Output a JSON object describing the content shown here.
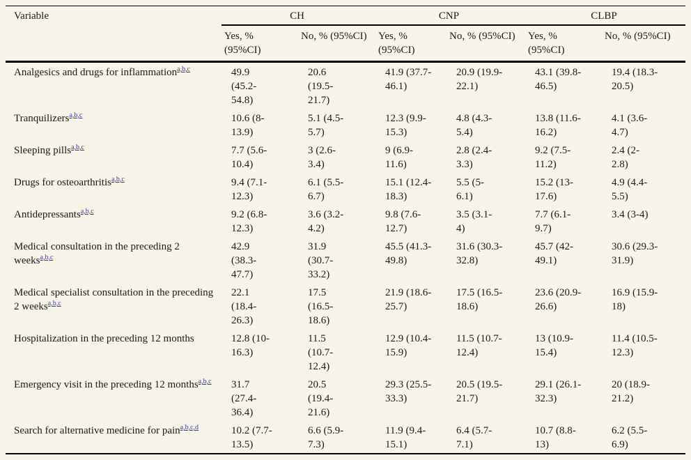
{
  "colors": {
    "bg": "#f7f4ea",
    "ink": "#1c1a17",
    "link": "#3333cc",
    "rule": "#000000"
  },
  "table": {
    "variable_header": "Variable",
    "groups": [
      {
        "label": "CH"
      },
      {
        "label": "CNP"
      },
      {
        "label": "CLBP"
      }
    ],
    "subheaders": [
      "Yes, %\n(95%CI)",
      "No, % (95%CI)",
      "Yes, %\n(95%CI)",
      "No, % (95%CI)",
      "Yes, %\n(95%CI)",
      "No, % (95%CI)"
    ],
    "rows": [
      {
        "variable": "Analgesics and drugs for inflammation",
        "footnotes": "a,b,c",
        "values": [
          "49.9\n(45.2-\n54.8)",
          "20.6\n(19.5-\n21.7)",
          "41.9 (37.7-\n46.1)",
          "20.9 (19.9-\n22.1)",
          "43.1 (39.8-\n46.5)",
          "19.4 (18.3-\n20.5)"
        ]
      },
      {
        "variable": "Tranquilizers",
        "footnotes": "a,b,c",
        "values": [
          "10.6 (8-\n13.9)",
          "5.1 (4.5-\n5.7)",
          "12.3 (9.9-\n15.3)",
          "4.8 (4.3-\n5.4)",
          "13.8 (11.6-\n16.2)",
          "4.1 (3.6-\n4.7)"
        ]
      },
      {
        "variable": "Sleeping pills",
        "footnotes": "a,b,c",
        "values": [
          "7.7 (5.6-\n10.4)",
          "3 (2.6-\n3.4)",
          "9 (6.9-\n11.6)",
          "2.8 (2.4-\n3.3)",
          "9.2 (7.5-\n11.2)",
          "2.4 (2-\n2.8)"
        ]
      },
      {
        "variable": "Drugs for osteoarthritis",
        "footnotes": "a,b,c",
        "values": [
          "9.4 (7.1-\n12.3)",
          "6.1 (5.5-\n6.7)",
          "15.1 (12.4-\n18.3)",
          "5.5 (5-\n6.1)",
          "15.2 (13-\n17.6)",
          "4.9 (4.4-\n5.5)"
        ]
      },
      {
        "variable": "Antidepressants",
        "footnotes": "a,b,c",
        "values": [
          "9.2 (6.8-\n12.3)",
          "3.6 (3.2-\n4.2)",
          "9.8 (7.6-\n12.7)",
          "3.5 (3.1-\n4)",
          "7.7 (6.1-\n9.7)",
          "3.4 (3-4)"
        ]
      },
      {
        "variable": "Medical consultation in the preceding 2 weeks",
        "footnotes": "a,b,c",
        "values": [
          "42.9\n(38.3-\n47.7)",
          "31.9\n(30.7-\n33.2)",
          "45.5 (41.3-\n49.8)",
          "31.6 (30.3-\n32.8)",
          "45.7 (42-\n49.1)",
          "30.6 (29.3-\n31.9)"
        ]
      },
      {
        "variable": "Medical specialist consultation in the preceding 2 weeks",
        "footnotes": "a,b,c",
        "values": [
          "22.1\n(18.4-\n26.3)",
          "17.5\n(16.5-\n18.6)",
          "21.9 (18.6-\n25.7)",
          "17.5 (16.5-\n18.6)",
          "23.6 (20.9-\n26.6)",
          "16.9 (15.9-\n18)"
        ]
      },
      {
        "variable": "Hospitalization in the preceding 12 months",
        "footnotes": "",
        "values": [
          "12.8 (10-\n16.3)",
          "11.5\n(10.7-\n12.4)",
          "12.9 (10.4-\n15.9)",
          "11.5 (10.7-\n12.4)",
          "13 (10.9-\n15.4)",
          "11.4 (10.5-\n12.3)"
        ]
      },
      {
        "variable": "Emergency visit in the preceding 12 months",
        "footnotes": "a,b,c",
        "values": [
          "31.7\n(27.4-\n36.4)",
          "20.5\n(19.4-\n21.6)",
          "29.3 (25.5-\n33.3)",
          "20.5 (19.5-\n21.7)",
          "29.1 (26.1-\n32.3)",
          "20 (18.9-\n21.2)"
        ]
      },
      {
        "variable": "Search for alternative medicine for pain",
        "footnotes": "a,b,c,d",
        "values": [
          "10.2 (7.7-\n13.5)",
          "6.6 (5.9-\n7.3)",
          "11.9 (9.4-\n15.1)",
          "6.4 (5.7-\n7.1)",
          "10.7 (8.8-\n13)",
          "6.2 (5.5-\n6.9)"
        ]
      }
    ]
  }
}
